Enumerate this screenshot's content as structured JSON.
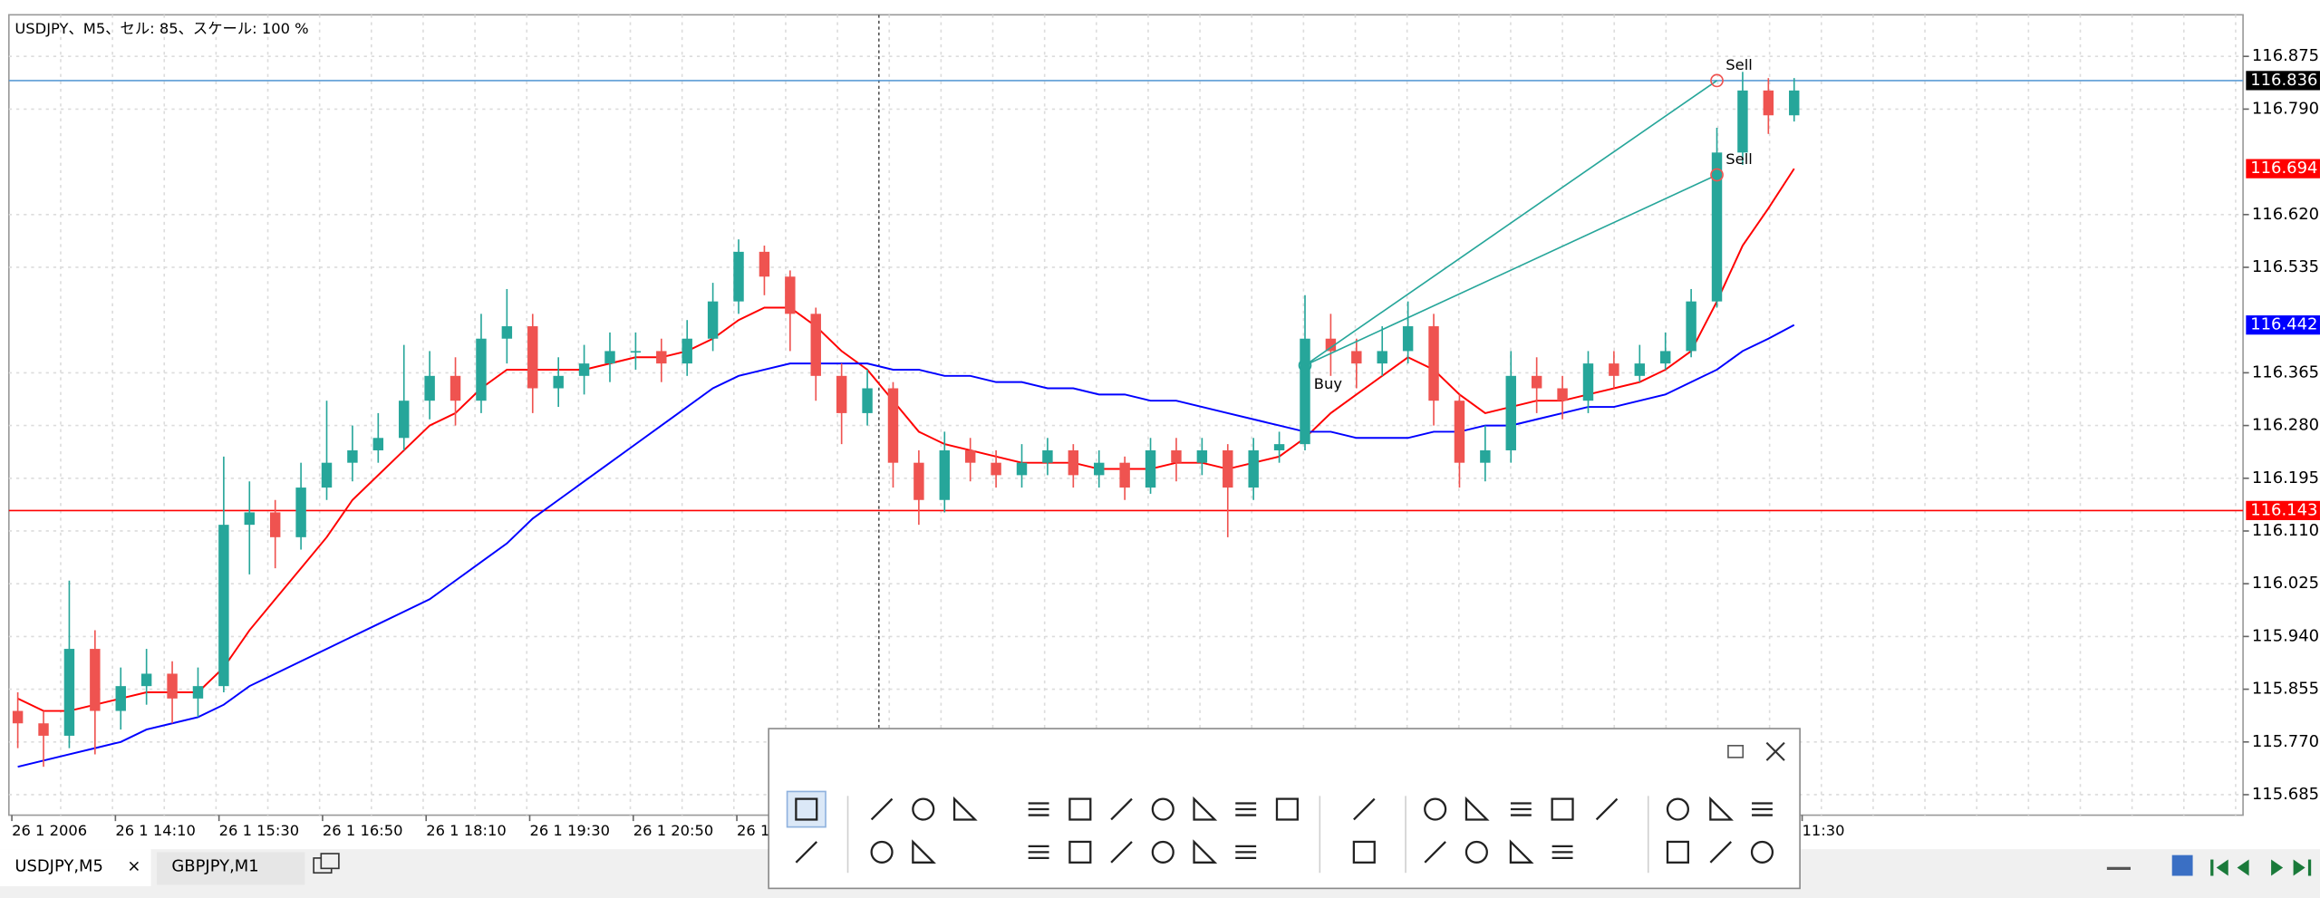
{
  "chart_data": {
    "type": "candlestick",
    "title": "USDJPY、M5、セル: 85、スケール: 100 %",
    "x_labels": [
      "26 1 2006",
      "26 1 14:10",
      "26 1 15:30",
      "26 1 16:50",
      "26 1 18:10",
      "26 1 19:30",
      "26 1 20:50",
      "26 1",
      "11:30"
    ],
    "open": [
      115.82,
      115.8,
      115.78,
      115.92,
      115.82,
      115.86,
      115.88,
      115.84,
      115.86,
      116.12,
      116.14,
      116.1,
      116.18,
      116.22,
      116.24,
      116.26,
      116.32,
      116.36,
      116.32,
      116.42,
      116.44,
      116.34,
      116.36,
      116.38,
      116.4,
      116.4,
      116.38,
      116.42,
      116.48,
      116.56,
      116.52,
      116.46,
      116.36,
      116.3,
      116.34,
      116.22,
      116.16,
      116.24,
      116.22,
      116.2,
      116.22,
      116.24,
      116.2,
      116.22,
      116.18,
      116.24,
      116.22,
      116.24,
      116.18,
      116.24,
      116.25,
      116.42,
      116.4,
      116.38,
      116.4,
      116.44,
      116.32,
      116.22,
      116.24,
      116.36,
      116.34,
      116.32,
      116.38,
      116.36,
      116.38,
      116.4,
      116.48,
      116.72,
      116.82,
      116.78
    ],
    "high": [
      115.85,
      115.82,
      116.03,
      115.95,
      115.89,
      115.92,
      115.9,
      115.89,
      116.23,
      116.19,
      116.16,
      116.22,
      116.32,
      116.28,
      116.3,
      116.41,
      116.4,
      116.39,
      116.46,
      116.5,
      116.46,
      116.39,
      116.41,
      116.43,
      116.43,
      116.42,
      116.45,
      116.51,
      116.58,
      116.57,
      116.53,
      116.47,
      116.38,
      116.37,
      116.35,
      116.24,
      116.27,
      116.26,
      116.24,
      116.25,
      116.26,
      116.25,
      116.24,
      116.23,
      116.26,
      116.26,
      116.26,
      116.25,
      116.26,
      116.27,
      116.49,
      116.46,
      116.42,
      116.44,
      116.48,
      116.46,
      116.33,
      116.28,
      116.4,
      116.39,
      116.36,
      116.4,
      116.4,
      116.41,
      116.43,
      116.5,
      116.76,
      116.85,
      116.84,
      116.84
    ],
    "low": [
      115.76,
      115.73,
      115.76,
      115.75,
      115.79,
      115.83,
      115.8,
      115.81,
      115.85,
      116.04,
      116.05,
      116.08,
      116.16,
      116.19,
      116.22,
      116.24,
      116.29,
      116.28,
      116.3,
      116.38,
      116.3,
      116.31,
      116.33,
      116.35,
      116.37,
      116.35,
      116.36,
      116.4,
      116.46,
      116.49,
      116.4,
      116.32,
      116.25,
      116.28,
      116.18,
      116.12,
      116.14,
      116.19,
      116.18,
      116.18,
      116.2,
      116.18,
      116.18,
      116.16,
      116.17,
      116.19,
      116.2,
      116.1,
      116.16,
      116.22,
      116.24,
      116.36,
      116.34,
      116.36,
      116.38,
      116.28,
      116.18,
      116.19,
      116.22,
      116.3,
      116.29,
      116.3,
      116.34,
      116.35,
      116.37,
      116.39,
      116.47,
      116.7,
      116.75,
      116.77
    ],
    "close": [
      115.8,
      115.78,
      115.92,
      115.82,
      115.86,
      115.88,
      115.84,
      115.86,
      116.12,
      116.14,
      116.1,
      116.18,
      116.22,
      116.24,
      116.26,
      116.32,
      116.36,
      116.32,
      116.42,
      116.44,
      116.34,
      116.36,
      116.38,
      116.4,
      116.4,
      116.38,
      116.42,
      116.48,
      116.56,
      116.52,
      116.46,
      116.36,
      116.3,
      116.34,
      116.22,
      116.16,
      116.24,
      116.22,
      116.2,
      116.22,
      116.24,
      116.2,
      116.22,
      116.18,
      116.24,
      116.22,
      116.24,
      116.18,
      116.24,
      116.25,
      116.42,
      116.4,
      116.38,
      116.4,
      116.44,
      116.32,
      116.22,
      116.24,
      116.36,
      116.34,
      116.32,
      116.38,
      116.36,
      116.38,
      116.4,
      116.48,
      116.72,
      116.82,
      116.78,
      116.82
    ],
    "up_color": "#26a69a",
    "down_color": "#ef5350",
    "series": [
      {
        "color": "#ff0000",
        "values": [
          115.84,
          115.82,
          115.82,
          115.83,
          115.84,
          115.85,
          115.85,
          115.85,
          115.89,
          115.95,
          116.0,
          116.05,
          116.1,
          116.16,
          116.2,
          116.24,
          116.28,
          116.3,
          116.34,
          116.37,
          116.37,
          116.37,
          116.37,
          116.38,
          116.39,
          116.39,
          116.4,
          116.42,
          116.45,
          116.47,
          116.47,
          116.44,
          116.4,
          116.37,
          116.32,
          116.27,
          116.25,
          116.24,
          116.23,
          116.22,
          116.22,
          116.22,
          116.21,
          116.21,
          116.21,
          116.22,
          116.22,
          116.21,
          116.22,
          116.23,
          116.26,
          116.3,
          116.33,
          116.36,
          116.39,
          116.37,
          116.33,
          116.3,
          116.31,
          116.32,
          116.32,
          116.33,
          116.34,
          116.35,
          116.37,
          116.4,
          116.48,
          116.57,
          116.63,
          116.694
        ]
      },
      {
        "color": "#0000ff",
        "values": [
          115.73,
          115.74,
          115.75,
          115.76,
          115.77,
          115.79,
          115.8,
          115.81,
          115.83,
          115.86,
          115.88,
          115.9,
          115.92,
          115.94,
          115.96,
          115.98,
          116.0,
          116.03,
          116.06,
          116.09,
          116.13,
          116.16,
          116.19,
          116.22,
          116.25,
          116.28,
          116.31,
          116.34,
          116.36,
          116.37,
          116.38,
          116.38,
          116.38,
          116.38,
          116.37,
          116.37,
          116.36,
          116.36,
          116.35,
          116.35,
          116.34,
          116.34,
          116.33,
          116.33,
          116.32,
          116.32,
          116.31,
          116.3,
          116.29,
          116.28,
          116.27,
          116.27,
          116.26,
          116.26,
          116.26,
          116.27,
          116.27,
          116.28,
          116.28,
          116.29,
          116.3,
          116.31,
          116.31,
          116.32,
          116.33,
          116.35,
          116.37,
          116.4,
          116.42,
          116.442
        ]
      }
    ],
    "hlines": [
      {
        "value": 116.836,
        "color": "#5b9bd5",
        "label_color": "#000000"
      },
      {
        "value": 116.143,
        "color": "#ff0000",
        "label_color": "#ff0000"
      }
    ],
    "trades": [
      {
        "label": "Buy",
        "index": 50,
        "price": 116.377,
        "color": "#26a69a"
      },
      {
        "label": "Sell",
        "index": 66,
        "price": 116.684,
        "color": "#ef5350"
      },
      {
        "label": "Sell",
        "index": 66,
        "price": 116.836,
        "color": "#ef5350"
      }
    ],
    "ylim": [
      115.652,
      116.942
    ],
    "yticks": [
      116.875,
      {
        "value": 116.79,
        "label": "116.790"
      },
      {
        "value": 116.62,
        "label": "116.620"
      },
      116.535,
      116.365,
      {
        "value": 116.28,
        "label": "116.280"
      },
      116.195,
      {
        "value": 116.11,
        "label": "116.110"
      },
      116.025,
      {
        "value": 115.94,
        "label": "115.940"
      },
      115.855,
      {
        "value": 115.77,
        "label": "115.770"
      },
      115.685
    ],
    "grid": true
  },
  "tabs": {
    "items": [
      "USDJPY,M5",
      "GBPJPY,M1"
    ],
    "close": "×"
  }
}
